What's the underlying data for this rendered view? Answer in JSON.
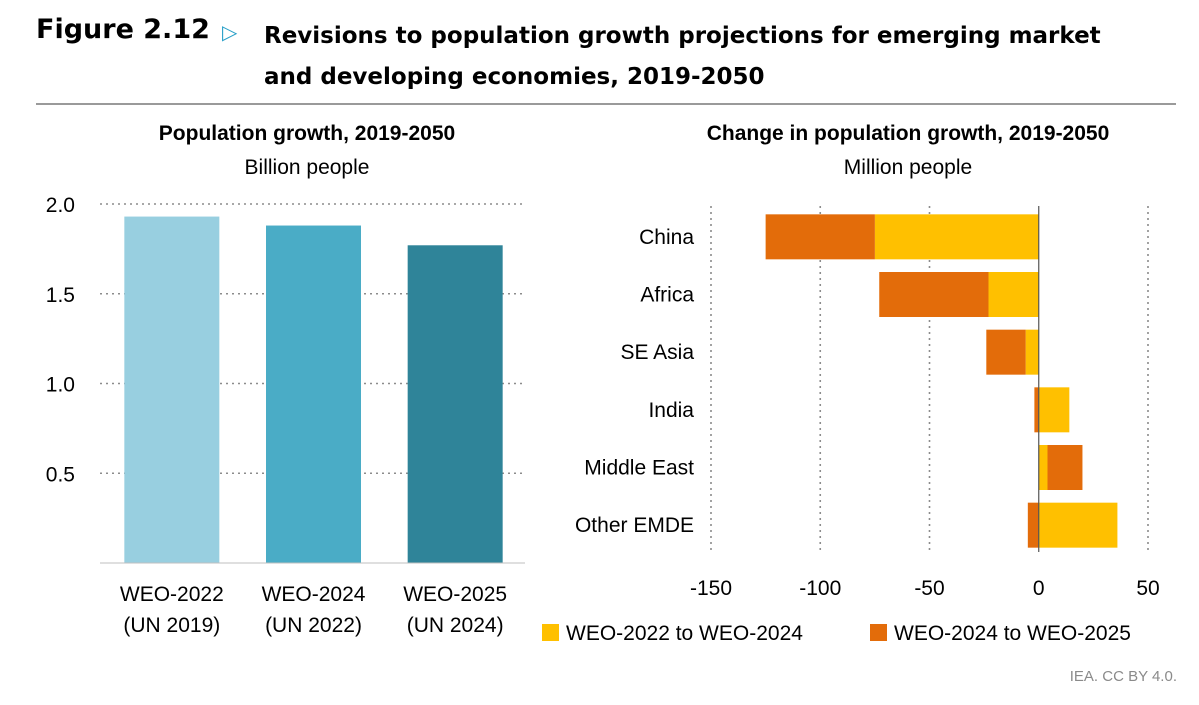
{
  "header": {
    "figure_label": "Figure 2.12",
    "arrow_icon": "triangle-right-icon",
    "title": "Revisions to population growth projections for emerging market and developing economies, 2019-2050"
  },
  "credit": "IEA. CC BY 4.0.",
  "chart_data": [
    {
      "type": "bar",
      "title": "Population growth, 2019-2050",
      "subtitle": "Billion people",
      "categories": [
        [
          "WEO-2022",
          "(UN 2019)"
        ],
        [
          "WEO-2024",
          "(UN 2022)"
        ],
        [
          "WEO-2025",
          "(UN 2024)"
        ]
      ],
      "values": [
        1.93,
        1.88,
        1.77
      ],
      "colors": [
        "#98cfe0",
        "#4aacc6",
        "#2f8499"
      ],
      "ylim": [
        0,
        2.0
      ],
      "yticks": [
        0.5,
        1.0,
        1.5,
        2.0
      ],
      "ytick_labels": [
        "0.5",
        "1.0",
        "1.5",
        "2.0"
      ],
      "grid": true
    },
    {
      "type": "bar",
      "orientation": "horizontal",
      "stacked": true,
      "title": "Change in population growth, 2019-2050",
      "subtitle": "Million people",
      "categories": [
        "China",
        "Africa",
        "SE Asia",
        "India",
        "Middle East",
        "Other EMDE"
      ],
      "series": [
        {
          "name": "WEO-2022 to WEO-2024",
          "color": "#ffc000",
          "values": [
            -75,
            -23,
            -6,
            14,
            4,
            36
          ]
        },
        {
          "name": "WEO-2024 to WEO-2025",
          "color": "#e36c0a",
          "values": [
            -50,
            -50,
            -18,
            -2,
            16,
            -5
          ]
        }
      ],
      "xlim": [
        -150,
        50
      ],
      "xticks": [
        -150,
        -100,
        -50,
        0,
        50
      ],
      "xtick_labels": [
        "-150",
        "-100",
        "-50",
        "0",
        "50"
      ],
      "legend": "bottom",
      "grid": true
    }
  ]
}
